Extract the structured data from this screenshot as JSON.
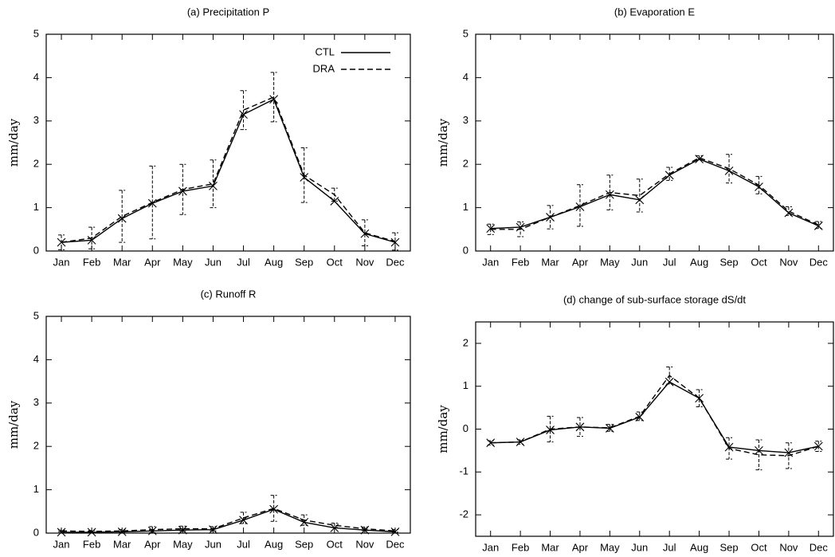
{
  "chart_data": [
    {
      "type": "line",
      "title": "(a)  Precipitation  P",
      "ylabel": "mm/day",
      "categories": [
        "Jan",
        "Feb",
        "Mar",
        "Apr",
        "May",
        "Jun",
        "Jul",
        "Aug",
        "Sep",
        "Oct",
        "Nov",
        "Dec"
      ],
      "ylim": [
        0,
        5
      ],
      "yticks": [
        0,
        1,
        2,
        3,
        4,
        5
      ],
      "legend": "upper right",
      "series": [
        {
          "name": "CTL",
          "color": "#000000",
          "dash": "solid",
          "marker": "x",
          "values": [
            0.2,
            0.25,
            0.75,
            1.1,
            1.38,
            1.5,
            3.15,
            3.5,
            1.7,
            1.15,
            0.4,
            0.2
          ]
        },
        {
          "name": "DRA",
          "color": "#000000",
          "dash": "dashed",
          "values": [
            0.2,
            0.3,
            0.8,
            1.12,
            1.42,
            1.55,
            3.25,
            3.55,
            1.75,
            1.3,
            0.42,
            0.22
          ],
          "errors": [
            0.17,
            0.25,
            0.6,
            0.84,
            0.58,
            0.55,
            0.45,
            0.57,
            0.63,
            0.15,
            0.3,
            0.2
          ]
        }
      ]
    },
    {
      "type": "line",
      "title": "(b)  Evaporation  E",
      "ylabel": "mm/day",
      "categories": [
        "Jan",
        "Feb",
        "Mar",
        "Apr",
        "May",
        "Jun",
        "Jul",
        "Aug",
        "Sep",
        "Oct",
        "Nov",
        "Dec"
      ],
      "ylim": [
        0,
        5
      ],
      "yticks": [
        0,
        1,
        2,
        3,
        4,
        5
      ],
      "series": [
        {
          "color": "#000000",
          "dash": "solid",
          "marker": "x",
          "values": [
            0.52,
            0.55,
            0.78,
            1.02,
            1.3,
            1.18,
            1.75,
            2.12,
            1.85,
            1.48,
            0.88,
            0.58
          ]
        },
        {
          "color": "#000000",
          "dash": "dashed",
          "values": [
            0.5,
            0.5,
            0.78,
            1.05,
            1.35,
            1.28,
            1.78,
            2.15,
            1.9,
            1.52,
            0.92,
            0.6
          ],
          "errors": [
            0.12,
            0.17,
            0.27,
            0.48,
            0.4,
            0.38,
            0.15,
            0.05,
            0.33,
            0.2,
            0.1,
            0.08
          ]
        }
      ]
    },
    {
      "type": "line",
      "title": "(c)  Runoff  R",
      "ylabel": "mm/day",
      "categories": [
        "Jan",
        "Feb",
        "Mar",
        "Apr",
        "May",
        "Jun",
        "Jul",
        "Aug",
        "Sep",
        "Oct",
        "Nov",
        "Dec"
      ],
      "ylim": [
        0,
        5
      ],
      "yticks": [
        0,
        1,
        2,
        3,
        4,
        5
      ],
      "series": [
        {
          "color": "#000000",
          "dash": "solid",
          "marker": "x",
          "values": [
            0.02,
            0.02,
            0.03,
            0.05,
            0.07,
            0.08,
            0.3,
            0.55,
            0.25,
            0.12,
            0.07,
            0.03
          ]
        },
        {
          "color": "#000000",
          "dash": "dashed",
          "values": [
            0.05,
            0.04,
            0.05,
            0.08,
            0.1,
            0.1,
            0.35,
            0.57,
            0.3,
            0.18,
            0.1,
            0.05
          ],
          "errors": [
            0.02,
            0.02,
            0.03,
            0.07,
            0.06,
            0.05,
            0.13,
            0.3,
            0.12,
            0.05,
            0.04,
            0.03
          ]
        }
      ]
    },
    {
      "type": "line",
      "title": "(d)  change of sub-surface storage  dS/dt",
      "ylabel": "mm/day",
      "categories": [
        "Jan",
        "Feb",
        "Mar",
        "Apr",
        "May",
        "Jun",
        "Jul",
        "Aug",
        "Sep",
        "Oct",
        "Nov",
        "Dec"
      ],
      "ylim": [
        -2.5,
        2.5
      ],
      "yticks": [
        -2,
        -1,
        0,
        1,
        2
      ],
      "series": [
        {
          "color": "#000000",
          "dash": "solid",
          "marker": "x",
          "values": [
            -0.32,
            -0.3,
            -0.02,
            0.05,
            0.02,
            0.28,
            1.1,
            0.72,
            -0.42,
            -0.5,
            -0.55,
            -0.4
          ]
        },
        {
          "color": "#000000",
          "dash": "dashed",
          "values": [
            -0.32,
            -0.3,
            0.0,
            0.05,
            0.03,
            0.3,
            1.25,
            0.72,
            -0.45,
            -0.6,
            -0.62,
            -0.4
          ],
          "errors": [
            0.05,
            0.05,
            0.3,
            0.22,
            0.08,
            0.1,
            0.2,
            0.2,
            0.25,
            0.35,
            0.3,
            0.12
          ]
        }
      ]
    }
  ]
}
